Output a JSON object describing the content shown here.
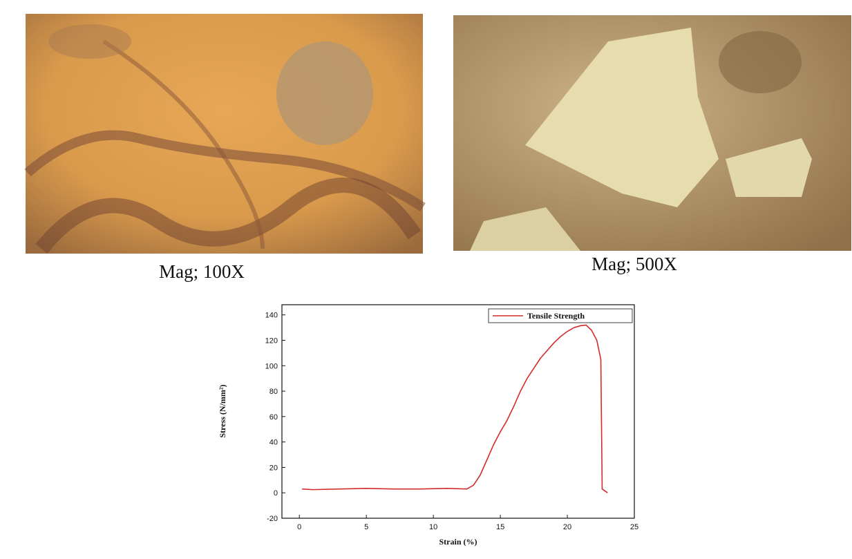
{
  "micrographs": [
    {
      "caption": "Mag; 100X"
    },
    {
      "caption": "Mag; 500X"
    }
  ],
  "chart_data": {
    "type": "line",
    "xlabel": "Strain (%)",
    "ylabel": "Stress (N/mm²)",
    "x": [
      0.2,
      1,
      3,
      5,
      7,
      9,
      11,
      12.5,
      13,
      13.5,
      14,
      14.5,
      15,
      15.5,
      16,
      16.5,
      17,
      17.5,
      18,
      18.5,
      19,
      19.5,
      20,
      20.5,
      21,
      21.4,
      21.8,
      22.2,
      22.5,
      22.6,
      23
    ],
    "series": [
      {
        "name": "Tensile Strength",
        "color": "#d42a2a",
        "values": [
          3,
          2.5,
          3,
          3.5,
          3,
          3,
          3.5,
          3,
          6,
          14,
          26,
          38,
          48,
          57,
          68,
          80,
          90,
          98,
          106,
          112,
          118,
          123,
          127,
          130,
          131.5,
          132,
          128,
          120,
          105,
          3,
          0
        ]
      }
    ],
    "xlim": [
      -1.3,
      25
    ],
    "ylim": [
      -20,
      148
    ],
    "xticks": [
      0,
      5,
      10,
      15,
      20,
      25
    ],
    "yticks": [
      -20,
      0,
      20,
      40,
      60,
      80,
      100,
      120,
      140
    ],
    "legend": "upper right"
  }
}
